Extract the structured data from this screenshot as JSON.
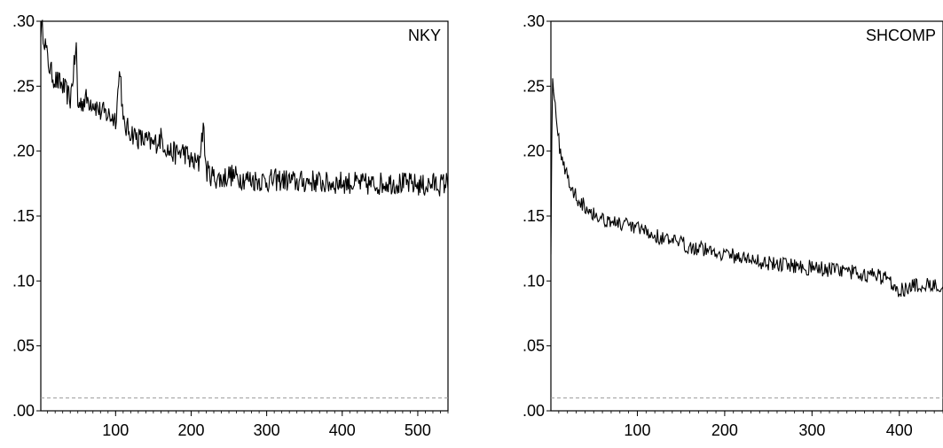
{
  "chart_data": [
    {
      "type": "line",
      "legend": "NKY",
      "legend_position": "top-right",
      "xlim": [
        1,
        540
      ],
      "ylim": [
        0.0,
        0.3
      ],
      "x_ticks": [
        100,
        200,
        300,
        400,
        500
      ],
      "x_tick_labels": [
        "100",
        "200",
        "300",
        "400",
        "500"
      ],
      "y_ticks": [
        0.0,
        0.05,
        0.1,
        0.15,
        0.2,
        0.25,
        0.3
      ],
      "y_tick_labels": [
        ".00",
        ".05",
        ".10",
        ".15",
        ".20",
        ".25",
        ".30"
      ],
      "reference_line": 0.01,
      "grid": false,
      "series": [
        {
          "name": "NKY",
          "x": [
            1,
            5,
            10,
            15,
            20,
            30,
            40,
            48,
            50,
            60,
            70,
            80,
            90,
            100,
            106,
            110,
            120,
            130,
            140,
            150,
            160,
            170,
            180,
            190,
            200,
            210,
            216,
            220,
            230,
            240,
            250,
            260,
            280,
            300,
            320,
            340,
            360,
            380,
            400,
            420,
            440,
            460,
            480,
            500,
            510,
            520,
            530,
            540
          ],
          "values": [
            0.295,
            0.29,
            0.27,
            0.26,
            0.255,
            0.25,
            0.24,
            0.28,
            0.235,
            0.24,
            0.238,
            0.23,
            0.228,
            0.225,
            0.265,
            0.22,
            0.215,
            0.21,
            0.208,
            0.205,
            0.21,
            0.2,
            0.198,
            0.2,
            0.192,
            0.19,
            0.22,
            0.185,
            0.18,
            0.178,
            0.182,
            0.18,
            0.178,
            0.177,
            0.178,
            0.176,
            0.177,
            0.175,
            0.176,
            0.175,
            0.174,
            0.176,
            0.175,
            0.174,
            0.173,
            0.175,
            0.174,
            0.176
          ]
        }
      ]
    },
    {
      "type": "line",
      "legend": "SHCOMP",
      "legend_position": "top-right",
      "xlim": [
        1,
        450
      ],
      "ylim": [
        0.0,
        0.3
      ],
      "x_ticks": [
        100,
        200,
        300,
        400
      ],
      "x_tick_labels": [
        "100",
        "200",
        "300",
        "400"
      ],
      "y_ticks": [
        0.0,
        0.05,
        0.1,
        0.15,
        0.2,
        0.25,
        0.3
      ],
      "y_tick_labels": [
        ".00",
        ".05",
        ".10",
        ".15",
        ".20",
        ".25",
        ".30"
      ],
      "reference_line": 0.01,
      "grid": false,
      "series": [
        {
          "name": "SHCOMP",
          "x": [
            1,
            2,
            3,
            5,
            8,
            12,
            16,
            20,
            25,
            30,
            40,
            50,
            60,
            70,
            80,
            90,
            100,
            120,
            140,
            160,
            180,
            200,
            220,
            240,
            260,
            280,
            300,
            320,
            340,
            360,
            380,
            390,
            400,
            410,
            420,
            430,
            440,
            450
          ],
          "values": [
            0.125,
            0.21,
            0.26,
            0.24,
            0.215,
            0.2,
            0.19,
            0.18,
            0.17,
            0.165,
            0.158,
            0.152,
            0.148,
            0.146,
            0.144,
            0.142,
            0.14,
            0.135,
            0.13,
            0.127,
            0.124,
            0.121,
            0.118,
            0.115,
            0.113,
            0.112,
            0.11,
            0.109,
            0.107,
            0.105,
            0.103,
            0.1,
            0.093,
            0.095,
            0.096,
            0.097,
            0.098,
            0.097
          ]
        }
      ]
    }
  ]
}
